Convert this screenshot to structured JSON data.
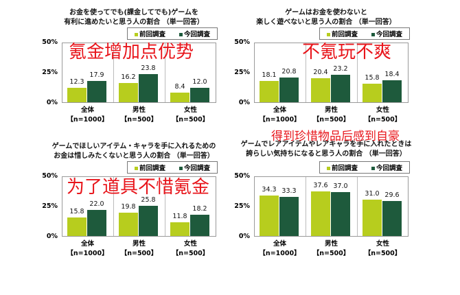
{
  "colors": {
    "previous": "#b7cd1e",
    "current": "#1e5a3c",
    "overlay": "#e8151b"
  },
  "chart_data": [
    {
      "type": "bar",
      "title": [
        "お金を使ってでも(課金してでも)ゲームを",
        "有利に進めたいと思う人の割合 （単一回答）"
      ],
      "legend": [
        "前回調査",
        "今回調査"
      ],
      "yticks": [
        "50%",
        "25%",
        "0%"
      ],
      "ylim": [
        0,
        50
      ],
      "categories": [
        [
          "全体",
          "【n=1000】"
        ],
        [
          "男性",
          "【n=500】"
        ],
        [
          "女性",
          "【n=500】"
        ]
      ],
      "series": [
        {
          "name": "前回調査",
          "values": [
            12.3,
            16.2,
            8.4
          ]
        },
        {
          "name": "今回調査",
          "values": [
            17.9,
            23.8,
            12.0
          ]
        }
      ],
      "overlay": "氪金增加点优势"
    },
    {
      "type": "bar",
      "title": [
        "ゲームはお金を使わないと",
        "楽しく遊べないと思う人の割合 （単一回答）"
      ],
      "legend": [
        "前回調査",
        "今回調査"
      ],
      "yticks": [
        "50%",
        "25%",
        "0%"
      ],
      "ylim": [
        0,
        50
      ],
      "categories": [
        [
          "全体",
          "【n=1000】"
        ],
        [
          "男性",
          "【n=500】"
        ],
        [
          "女性",
          "【n=500】"
        ]
      ],
      "series": [
        {
          "name": "前回調査",
          "values": [
            18.1,
            20.4,
            15.8
          ]
        },
        {
          "name": "今回調査",
          "values": [
            20.8,
            23.2,
            18.4
          ]
        }
      ],
      "overlay": "不氪玩不爽"
    },
    {
      "type": "bar",
      "title": [
        "ゲームでほしいアイテム・キャラを手に入れるための",
        "お金は惜しみたくないと思う人の割合 （単一回答）"
      ],
      "legend": [
        "前回調査",
        "今回調査"
      ],
      "yticks": [
        "50%",
        "25%",
        "0%"
      ],
      "ylim": [
        0,
        50
      ],
      "categories": [
        [
          "全体",
          "【n=1000】"
        ],
        [
          "男性",
          "【n=500】"
        ],
        [
          "女性",
          "【n=500】"
        ]
      ],
      "series": [
        {
          "name": "前回調査",
          "values": [
            15.8,
            19.8,
            11.8
          ]
        },
        {
          "name": "今回調査",
          "values": [
            22.0,
            25.8,
            18.2
          ]
        }
      ],
      "overlay": "为了道具不惜氪金"
    },
    {
      "type": "bar",
      "title": [
        "ゲームでレアアイテムやレアキャラを手に入れたときは",
        "誇らしい気持ちになると思う人の割合 （単一回答）"
      ],
      "legend": [
        "前回調査",
        "今回調査"
      ],
      "yticks": [
        "50%",
        "25%",
        "0%"
      ],
      "ylim": [
        0,
        50
      ],
      "categories": [
        [
          "全体",
          "【n=1000】"
        ],
        [
          "男性",
          "【n=500】"
        ],
        [
          "女性",
          "【n=500】"
        ]
      ],
      "series": [
        {
          "name": "前回調査",
          "values": [
            34.3,
            37.6,
            31.0
          ]
        },
        {
          "name": "今回調査",
          "values": [
            33.3,
            37.0,
            29.6
          ]
        }
      ],
      "overlay": "得到珍惜物品后感到自豪"
    }
  ]
}
